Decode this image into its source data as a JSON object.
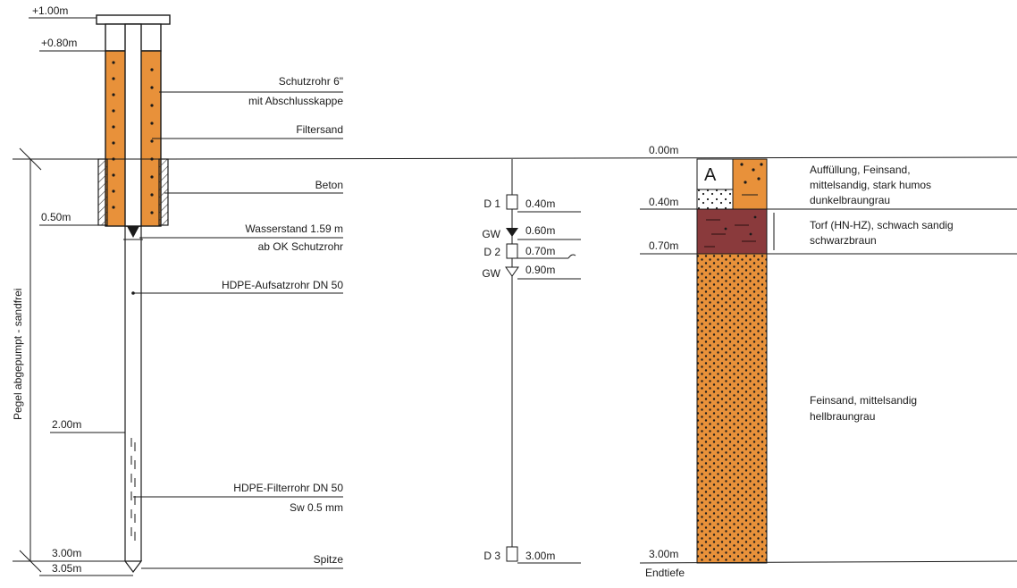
{
  "well": {
    "elevations": {
      "top_cap": "+1.00m",
      "top_pipe": "+0.80m",
      "concrete_base": "0.50m",
      "filter_start": "2.00m",
      "bottom": "3.00m",
      "tip": "3.05m"
    },
    "labels": {
      "casing_line1": "Schutzrohr 6\"",
      "casing_line2": "mit Abschlusskappe",
      "filter_sand": "Filtersand",
      "concrete": "Beton",
      "water_level_line1": "Wasserstand 1.59 m",
      "water_level_line2": "ab OK Schutzrohr",
      "riser_pipe": "HDPE-Aufsatzrohr DN 50",
      "filter_pipe_line1": "HDPE-Filterrohr DN 50",
      "filter_pipe_line2": "Sw 0.5 mm",
      "tip": "Spitze"
    },
    "side_label": "Pegel abgepumpt - sandfrei"
  },
  "samples": {
    "items": [
      {
        "id": "D 1",
        "depth": "0.40m"
      },
      {
        "id": "D 2",
        "depth": "0.70m"
      },
      {
        "id": "D 3",
        "depth": "3.00m"
      }
    ],
    "groundwater": [
      {
        "tag": "GW",
        "depth": "0.60m"
      },
      {
        "tag": "GW",
        "depth": "0.90m"
      }
    ]
  },
  "profile": {
    "depths": {
      "top": "0.00m",
      "layer1_bottom": "0.40m",
      "layer2_bottom": "0.70m",
      "end": "3.00m"
    },
    "layer_letter": "A",
    "end_label": "Endtiefe",
    "layers": [
      {
        "line1": "Auffüllung, Feinsand,",
        "line2": "mittelsandig, stark humos",
        "line3": "dunkelbraungrau"
      },
      {
        "line1": "Torf (HN-HZ), schwach sandig",
        "line2": "schwarzbraun"
      },
      {
        "line1": "Feinsand, mittelsandig",
        "line2": "hellbraungrau"
      }
    ],
    "colors": {
      "sand": "#e8913a",
      "peat": "#8a3a3c",
      "outline": "#1a1a1a"
    }
  }
}
